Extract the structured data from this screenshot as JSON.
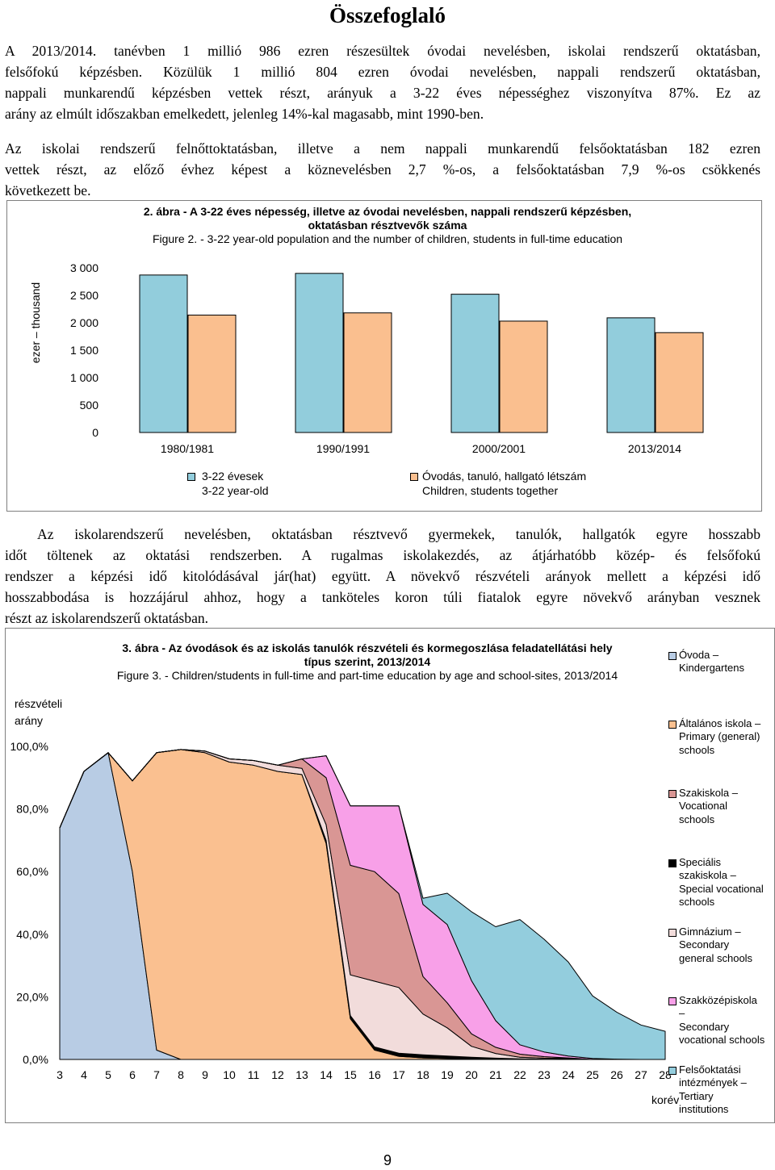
{
  "title": "Összefoglaló",
  "paragraph1": {
    "lines": [
      "A 2013/2014. tanévben 1 millió 986 ezren részesültek óvodai nevelésben, iskolai rendszerű oktatásban,",
      "felsőfokú képzésben. Közülük 1 millió 804 ezren óvodai nevelésben, nappali rendszerű oktatásban,",
      "nappali munkarendű képzésben vettek részt, arányuk a 3-22 éves népességhez viszonyítva 87%. Ez az",
      "arány az elmúlt időszakban emelkedett, jelenleg 14%-kal magasabb, mint 1990-ben."
    ]
  },
  "paragraph2": {
    "lines": [
      "Az iskolai rendszerű felnőttoktatásban, illetve a nem nappali munkarendű felsőoktatásban 182 ezren",
      "vettek részt, az előző évhez képest a köznevelésben 2,7 %-os, a felsőoktatásban 7,9 %-os csökkenés",
      "következett be."
    ]
  },
  "figure2": {
    "caption_hu_line1": "2. ábra - A 3-22 éves népesség, illetve az óvodai nevelésben, nappali rendszerű képzésben,",
    "caption_hu_line2": "oktatásban résztvevők száma",
    "caption_en": "Figure 2. - 3-22 year-old population and the number of children, students in full-time education",
    "ylabel": "ezer – thousand",
    "legend": [
      {
        "line1": "3-22 évesek",
        "line2": "3-22 year-old"
      },
      {
        "line1": "Óvodás, tanuló, hallgató létszám",
        "line2": "Children, students together"
      }
    ]
  },
  "paragraph3": {
    "lines": [
      "Az iskolarendszerű nevelésben, oktatásban résztvevő gyermekek, tanulók, hallgatók egyre hosszabb",
      "időt töltenek az oktatási rendszerben. A rugalmas iskolakezdés, az átjárhatóbb közép- és felsőfokú",
      "rendszer a képzési idő kitolódásával jár(hat) együtt. A növekvő részvételi arányok mellett a képzési idő",
      "hosszabbodása is hozzájárul ahhoz, hogy a tanköteles koron túli fiatalok egyre növekvő arányban vesznek",
      "részt az iskolarendszerű oktatásban."
    ]
  },
  "figure3": {
    "caption_hu_line1": "3. ábra - Az óvodások és az iskolás tanulók részvételi és kormegoszlása feladatellátási hely",
    "caption_hu_line2": "típus szerint, 2013/2014",
    "caption_en": "Figure 3. - Children/students in full-time and part-time education by age and school-sites, 2013/2014",
    "ylabel_line1": "részvételi",
    "ylabel_line2": "arány",
    "xlabel": "korév",
    "legend": [
      {
        "lines": [
          "Óvoda –",
          "Kindergartens"
        ]
      },
      {
        "lines": [
          "Általános iskola –",
          "Primary (general)",
          "schools"
        ]
      },
      {
        "lines": [
          "Szakiskola –",
          "Vocational",
          "schools"
        ]
      },
      {
        "lines": [
          "Speciális",
          "szakiskola –",
          "Special vocational",
          "schools"
        ]
      },
      {
        "lines": [
          "Gimnázium –",
          "Secondary",
          "general schools"
        ]
      },
      {
        "lines": [
          "Szakközépiskola",
          "–",
          "Secondary",
          "vocational schools"
        ]
      },
      {
        "lines": [
          "Felsőoktatási",
          "intézmények –",
          "Tertiary",
          "institutions"
        ]
      }
    ]
  },
  "page_number": "9",
  "chart_data": [
    {
      "type": "bar",
      "categories": [
        "1980/1981",
        "1990/1991",
        "2000/2001",
        "2013/2014"
      ],
      "series": [
        {
          "name": "3-22 évesek / 3-22 year-old",
          "color": "#92cddc",
          "values": [
            2870,
            2900,
            2520,
            2090
          ]
        },
        {
          "name": "Óvodás, tanuló, hallgató létszám / Children, students together",
          "color": "#fabf8f",
          "values": [
            2140,
            2180,
            2030,
            1820
          ]
        }
      ],
      "ylim": [
        0,
        3000
      ],
      "yticks": [
        "0",
        "500",
        "1 000",
        "1 500",
        "2 000",
        "2 500",
        "3 000"
      ],
      "ylabel": "ezer – thousand",
      "grid": false,
      "legend": "bottom"
    },
    {
      "type": "area",
      "stacked": true,
      "x": [
        3,
        4,
        5,
        6,
        7,
        8,
        9,
        10,
        11,
        12,
        13,
        14,
        15,
        16,
        17,
        18,
        19,
        20,
        21,
        22,
        23,
        24,
        25,
        26,
        27,
        28
      ],
      "xticks": [
        "3",
        "4",
        "5",
        "6",
        "7",
        "8",
        "9",
        "10",
        "11",
        "12",
        "13",
        "14",
        "15",
        "16",
        "17",
        "18",
        "19",
        "20",
        "21",
        "22",
        "23",
        "24",
        "25",
        "26",
        "27",
        "28"
      ],
      "yticks": [
        "0,0%",
        "20,0%",
        "40,0%",
        "60,0%",
        "80,0%",
        "100,0%"
      ],
      "ylim": [
        0,
        100
      ],
      "xlabel": "korév",
      "ylabel": "részvételi arány",
      "legend": "right",
      "series": [
        {
          "name": "Óvoda – Kindergartens",
          "color": "#b8cce4",
          "values": [
            74,
            92,
            98,
            60,
            3,
            0,
            0,
            0,
            0,
            0,
            0,
            0,
            0,
            0,
            0,
            0,
            0,
            0,
            0,
            0,
            0,
            0,
            0,
            0,
            0,
            0
          ]
        },
        {
          "name": "Általános iskola – Primary (general) schools",
          "color": "#fac090",
          "values": [
            0,
            0,
            0,
            29,
            95,
            99,
            98,
            95,
            94,
            92,
            91,
            69,
            13,
            3,
            1,
            0.5,
            0.3,
            0.2,
            0.1,
            0,
            0,
            0,
            0,
            0,
            0,
            0
          ]
        },
        {
          "name": "Speciális szakiskola – Special vocational schools",
          "color": "#000000",
          "values": [
            0,
            0,
            0,
            0,
            0,
            0,
            0,
            0,
            0,
            0,
            0,
            1,
            1,
            1,
            1,
            1,
            0.8,
            0.5,
            0.3,
            0.2,
            0.1,
            0.1,
            0,
            0,
            0,
            0
          ]
        },
        {
          "name": "Gimnázium – Secondary general schools",
          "color": "#f2dcdb",
          "values": [
            0,
            0,
            0,
            0,
            0,
            0,
            0.5,
            1,
            1.5,
            2,
            2,
            5,
            13,
            21,
            21,
            13,
            9,
            3.5,
            1.5,
            0.5,
            0.3,
            0.2,
            0,
            0,
            0,
            0
          ]
        },
        {
          "name": "Szakiskola – Vocational schools",
          "color": "#d99694",
          "values": [
            0,
            0,
            0,
            0,
            0,
            0,
            0,
            0,
            0,
            0,
            3,
            15,
            35,
            35,
            30,
            12,
            8,
            4,
            2,
            1,
            0.5,
            0.2,
            0,
            0,
            0,
            0
          ]
        },
        {
          "name": "Szakközépiskola – Secondary vocational schools",
          "color": "#f8a0e8",
          "values": [
            0,
            0,
            0,
            0,
            0,
            0,
            0,
            0,
            0,
            0,
            0,
            7,
            19,
            21,
            28,
            23,
            25,
            17,
            8.5,
            3,
            1.5,
            0.6,
            0.3,
            0.1,
            0,
            0
          ]
        },
        {
          "name": "Felsőoktatási intézmények – Tertiary institutions",
          "color": "#93cddd",
          "values": [
            0,
            0,
            0,
            0,
            0,
            0,
            0,
            0,
            0,
            0,
            0,
            0,
            0,
            0,
            0,
            2,
            10,
            22,
            30,
            40,
            36,
            30,
            20,
            15,
            11,
            9
          ]
        }
      ]
    }
  ]
}
